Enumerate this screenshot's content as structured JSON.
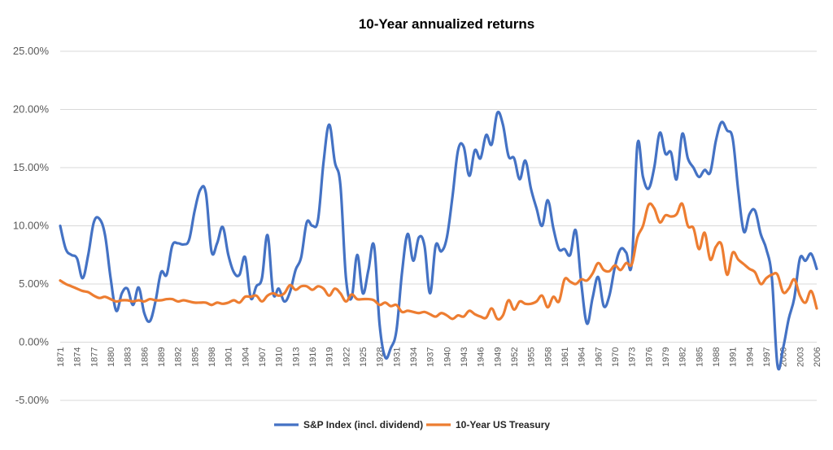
{
  "chart_data": {
    "type": "line",
    "title": "10-Year annualized returns",
    "xlabel": "",
    "ylabel": "",
    "ylim": [
      -5,
      25
    ],
    "y_ticks": [
      -5,
      0,
      5,
      10,
      15,
      20,
      25
    ],
    "y_tick_labels": [
      "-5.00%",
      "0.00%",
      "5.00%",
      "10.00%",
      "15.00%",
      "20.00%",
      "25.00%"
    ],
    "x_range": [
      1871,
      2006
    ],
    "x_tick_labels": [
      "1871",
      "1874",
      "1877",
      "1880",
      "1883",
      "1886",
      "1889",
      "1892",
      "1895",
      "1898",
      "1901",
      "1904",
      "1907",
      "1910",
      "1913",
      "1916",
      "1919",
      "1922",
      "1925",
      "1928",
      "1931",
      "1934",
      "1937",
      "1940",
      "1943",
      "1946",
      "1949",
      "1952",
      "1955",
      "1958",
      "1961",
      "1964",
      "1967",
      "1970",
      "1973",
      "1976",
      "1979",
      "1982",
      "1985",
      "1988",
      "1991",
      "1994",
      "1997",
      "2000",
      "2003",
      "2006"
    ],
    "grid": true,
    "legend_position": "bottom",
    "series": [
      {
        "name": "S&P Index (incl. dividend)",
        "color": "#4472C4",
        "points": [
          [
            1871,
            10.0
          ],
          [
            1872,
            8.0
          ],
          [
            1873,
            7.5
          ],
          [
            1874,
            7.2
          ],
          [
            1875,
            5.5
          ],
          [
            1876,
            7.5
          ],
          [
            1877,
            10.3
          ],
          [
            1878,
            10.6
          ],
          [
            1879,
            9.2
          ],
          [
            1880,
            5.5
          ],
          [
            1881,
            2.7
          ],
          [
            1882,
            4.2
          ],
          [
            1883,
            4.6
          ],
          [
            1884,
            3.2
          ],
          [
            1885,
            4.7
          ],
          [
            1886,
            2.5
          ],
          [
            1887,
            1.8
          ],
          [
            1888,
            3.5
          ],
          [
            1889,
            6.0
          ],
          [
            1890,
            5.8
          ],
          [
            1891,
            8.3
          ],
          [
            1892,
            8.5
          ],
          [
            1893,
            8.4
          ],
          [
            1894,
            8.8
          ],
          [
            1895,
            11.3
          ],
          [
            1896,
            13.1
          ],
          [
            1897,
            12.8
          ],
          [
            1898,
            7.8
          ],
          [
            1899,
            8.5
          ],
          [
            1900,
            9.9
          ],
          [
            1901,
            7.5
          ],
          [
            1902,
            6.0
          ],
          [
            1903,
            5.8
          ],
          [
            1904,
            7.3
          ],
          [
            1905,
            3.8
          ],
          [
            1906,
            4.8
          ],
          [
            1907,
            5.5
          ],
          [
            1908,
            9.2
          ],
          [
            1909,
            4.2
          ],
          [
            1910,
            4.6
          ],
          [
            1911,
            3.5
          ],
          [
            1912,
            4.3
          ],
          [
            1913,
            6.2
          ],
          [
            1914,
            7.3
          ],
          [
            1915,
            10.3
          ],
          [
            1916,
            10.0
          ],
          [
            1917,
            10.5
          ],
          [
            1918,
            15.5
          ],
          [
            1919,
            18.7
          ],
          [
            1920,
            15.5
          ],
          [
            1921,
            13.5
          ],
          [
            1922,
            5.5
          ],
          [
            1923,
            3.8
          ],
          [
            1924,
            7.5
          ],
          [
            1925,
            4.2
          ],
          [
            1926,
            6.2
          ],
          [
            1927,
            8.3
          ],
          [
            1928,
            1.5
          ],
          [
            1929,
            -1.3
          ],
          [
            1930,
            -0.5
          ],
          [
            1931,
            1.0
          ],
          [
            1932,
            6.0
          ],
          [
            1933,
            9.3
          ],
          [
            1934,
            7.0
          ],
          [
            1935,
            9.0
          ],
          [
            1936,
            8.3
          ],
          [
            1937,
            4.2
          ],
          [
            1938,
            8.3
          ],
          [
            1939,
            7.8
          ],
          [
            1940,
            9.0
          ],
          [
            1941,
            12.5
          ],
          [
            1942,
            16.5
          ],
          [
            1943,
            16.8
          ],
          [
            1944,
            14.3
          ],
          [
            1945,
            16.5
          ],
          [
            1946,
            15.8
          ],
          [
            1947,
            17.8
          ],
          [
            1948,
            17.0
          ],
          [
            1949,
            19.7
          ],
          [
            1950,
            18.7
          ],
          [
            1951,
            16.0
          ],
          [
            1952,
            15.8
          ],
          [
            1953,
            14.0
          ],
          [
            1954,
            15.6
          ],
          [
            1955,
            13.2
          ],
          [
            1956,
            11.5
          ],
          [
            1957,
            10.0
          ],
          [
            1958,
            12.2
          ],
          [
            1959,
            9.8
          ],
          [
            1960,
            8.0
          ],
          [
            1961,
            8.0
          ],
          [
            1962,
            7.5
          ],
          [
            1963,
            9.6
          ],
          [
            1964,
            5.0
          ],
          [
            1965,
            1.6
          ],
          [
            1966,
            3.8
          ],
          [
            1967,
            5.6
          ],
          [
            1968,
            3.1
          ],
          [
            1969,
            4.0
          ],
          [
            1970,
            6.5
          ],
          [
            1971,
            8.0
          ],
          [
            1972,
            7.7
          ],
          [
            1973,
            6.8
          ],
          [
            1974,
            17.0
          ],
          [
            1975,
            14.2
          ],
          [
            1976,
            13.2
          ],
          [
            1977,
            15.0
          ],
          [
            1978,
            18.0
          ],
          [
            1979,
            16.2
          ],
          [
            1980,
            16.3
          ],
          [
            1981,
            14.0
          ],
          [
            1982,
            17.9
          ],
          [
            1983,
            15.8
          ],
          [
            1984,
            15.0
          ],
          [
            1985,
            14.2
          ],
          [
            1986,
            14.8
          ],
          [
            1987,
            14.6
          ],
          [
            1988,
            17.3
          ],
          [
            1989,
            18.9
          ],
          [
            1990,
            18.2
          ],
          [
            1991,
            17.5
          ],
          [
            1992,
            13.0
          ],
          [
            1993,
            9.5
          ],
          [
            1994,
            11.0
          ],
          [
            1995,
            11.3
          ],
          [
            1996,
            9.3
          ],
          [
            1997,
            8.0
          ],
          [
            1998,
            5.5
          ],
          [
            1999,
            -2.0
          ],
          [
            2000,
            -0.5
          ],
          [
            2001,
            2.0
          ],
          [
            2002,
            3.8
          ],
          [
            2003,
            7.2
          ],
          [
            2004,
            7.0
          ],
          [
            2005,
            7.6
          ],
          [
            2006,
            6.3
          ]
        ]
      },
      {
        "name": "10-Year US Treasury",
        "color": "#ED7D31",
        "points": [
          [
            1871,
            5.3
          ],
          [
            1872,
            5.0
          ],
          [
            1873,
            4.8
          ],
          [
            1874,
            4.6
          ],
          [
            1875,
            4.4
          ],
          [
            1876,
            4.3
          ],
          [
            1877,
            4.0
          ],
          [
            1878,
            3.8
          ],
          [
            1879,
            3.9
          ],
          [
            1880,
            3.7
          ],
          [
            1881,
            3.5
          ],
          [
            1882,
            3.6
          ],
          [
            1883,
            3.6
          ],
          [
            1884,
            3.5
          ],
          [
            1885,
            3.6
          ],
          [
            1886,
            3.5
          ],
          [
            1887,
            3.7
          ],
          [
            1888,
            3.6
          ],
          [
            1889,
            3.6
          ],
          [
            1890,
            3.7
          ],
          [
            1891,
            3.7
          ],
          [
            1892,
            3.5
          ],
          [
            1893,
            3.6
          ],
          [
            1894,
            3.5
          ],
          [
            1895,
            3.4
          ],
          [
            1896,
            3.4
          ],
          [
            1897,
            3.4
          ],
          [
            1898,
            3.2
          ],
          [
            1899,
            3.4
          ],
          [
            1900,
            3.3
          ],
          [
            1901,
            3.4
          ],
          [
            1902,
            3.6
          ],
          [
            1903,
            3.4
          ],
          [
            1904,
            3.9
          ],
          [
            1905,
            3.9
          ],
          [
            1906,
            4.0
          ],
          [
            1907,
            3.5
          ],
          [
            1908,
            4.0
          ],
          [
            1909,
            4.2
          ],
          [
            1910,
            4.0
          ],
          [
            1911,
            4.2
          ],
          [
            1912,
            4.9
          ],
          [
            1913,
            4.5
          ],
          [
            1914,
            4.8
          ],
          [
            1915,
            4.8
          ],
          [
            1916,
            4.5
          ],
          [
            1917,
            4.8
          ],
          [
            1918,
            4.6
          ],
          [
            1919,
            4.0
          ],
          [
            1920,
            4.6
          ],
          [
            1921,
            4.2
          ],
          [
            1922,
            3.5
          ],
          [
            1923,
            4.1
          ],
          [
            1924,
            3.7
          ],
          [
            1925,
            3.7
          ],
          [
            1926,
            3.7
          ],
          [
            1927,
            3.6
          ],
          [
            1928,
            3.2
          ],
          [
            1929,
            3.4
          ],
          [
            1930,
            3.1
          ],
          [
            1931,
            3.2
          ],
          [
            1932,
            2.6
          ],
          [
            1933,
            2.7
          ],
          [
            1934,
            2.6
          ],
          [
            1935,
            2.5
          ],
          [
            1936,
            2.6
          ],
          [
            1937,
            2.4
          ],
          [
            1938,
            2.2
          ],
          [
            1939,
            2.5
          ],
          [
            1940,
            2.3
          ],
          [
            1941,
            2.0
          ],
          [
            1942,
            2.3
          ],
          [
            1943,
            2.2
          ],
          [
            1944,
            2.7
          ],
          [
            1945,
            2.4
          ],
          [
            1946,
            2.2
          ],
          [
            1947,
            2.1
          ],
          [
            1948,
            2.9
          ],
          [
            1949,
            2.0
          ],
          [
            1950,
            2.3
          ],
          [
            1951,
            3.6
          ],
          [
            1952,
            2.8
          ],
          [
            1953,
            3.5
          ],
          [
            1954,
            3.3
          ],
          [
            1955,
            3.3
          ],
          [
            1956,
            3.5
          ],
          [
            1957,
            4.0
          ],
          [
            1958,
            3.0
          ],
          [
            1959,
            3.9
          ],
          [
            1960,
            3.5
          ],
          [
            1961,
            5.4
          ],
          [
            1962,
            5.2
          ],
          [
            1963,
            5.0
          ],
          [
            1964,
            5.4
          ],
          [
            1965,
            5.3
          ],
          [
            1966,
            5.9
          ],
          [
            1967,
            6.8
          ],
          [
            1968,
            6.2
          ],
          [
            1969,
            6.1
          ],
          [
            1970,
            6.6
          ],
          [
            1971,
            6.2
          ],
          [
            1972,
            6.8
          ],
          [
            1973,
            6.7
          ],
          [
            1974,
            9.0
          ],
          [
            1975,
            10.0
          ],
          [
            1976,
            11.8
          ],
          [
            1977,
            11.5
          ],
          [
            1978,
            10.3
          ],
          [
            1979,
            10.9
          ],
          [
            1980,
            10.8
          ],
          [
            1981,
            11.0
          ],
          [
            1982,
            11.9
          ],
          [
            1983,
            10.0
          ],
          [
            1984,
            9.8
          ],
          [
            1985,
            8.0
          ],
          [
            1986,
            9.4
          ],
          [
            1987,
            7.1
          ],
          [
            1988,
            8.2
          ],
          [
            1989,
            8.4
          ],
          [
            1990,
            5.8
          ],
          [
            1991,
            7.7
          ],
          [
            1992,
            7.1
          ],
          [
            1993,
            6.7
          ],
          [
            1994,
            6.3
          ],
          [
            1995,
            6.0
          ],
          [
            1996,
            5.0
          ],
          [
            1997,
            5.5
          ],
          [
            1998,
            5.8
          ],
          [
            1999,
            5.8
          ],
          [
            2000,
            4.3
          ],
          [
            2001,
            4.6
          ],
          [
            2002,
            5.4
          ],
          [
            2003,
            4.0
          ],
          [
            2004,
            3.4
          ],
          [
            2005,
            4.4
          ],
          [
            2006,
            2.9
          ]
        ]
      }
    ]
  }
}
